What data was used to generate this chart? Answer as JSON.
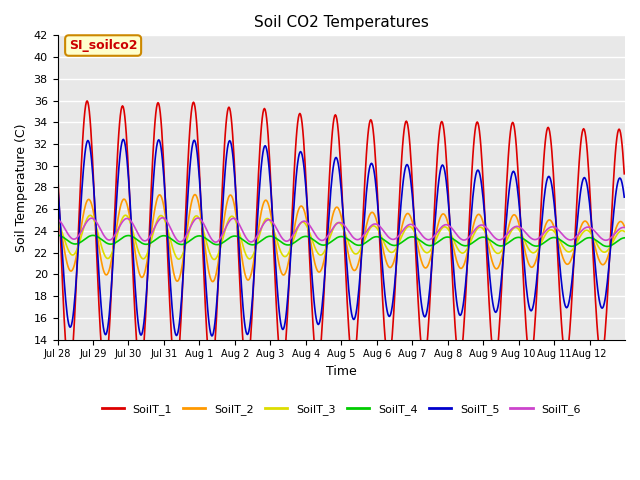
{
  "title": "Soil CO2 Temperatures",
  "xlabel": "Time",
  "ylabel": "Soil Temperature (C)",
  "ylim": [
    14,
    42
  ],
  "annotation_text": "SI_soilco2",
  "annotation_bg": "#ffffcc",
  "annotation_border": "#cc8800",
  "x_tick_labels": [
    "Jul 28",
    "Jul 29",
    "Jul 30",
    "Jul 31",
    "Aug 1",
    "Aug 2",
    "Aug 3",
    "Aug 4",
    "Aug 5",
    "Aug 6",
    "Aug 7",
    "Aug 8",
    "Aug 9",
    "Aug 10",
    "Aug 11",
    "Aug 12"
  ],
  "series_colors": [
    "#dd0000",
    "#ff9900",
    "#dddd00",
    "#00cc00",
    "#0000cc",
    "#cc44cc"
  ],
  "series_labels": [
    "SoilT_1",
    "SoilT_2",
    "SoilT_3",
    "SoilT_4",
    "SoilT_5",
    "SoilT_6"
  ],
  "bg_color": "#e8e8e8",
  "grid_color": "#ffffff",
  "n_days": 16,
  "pts_per_day": 48
}
